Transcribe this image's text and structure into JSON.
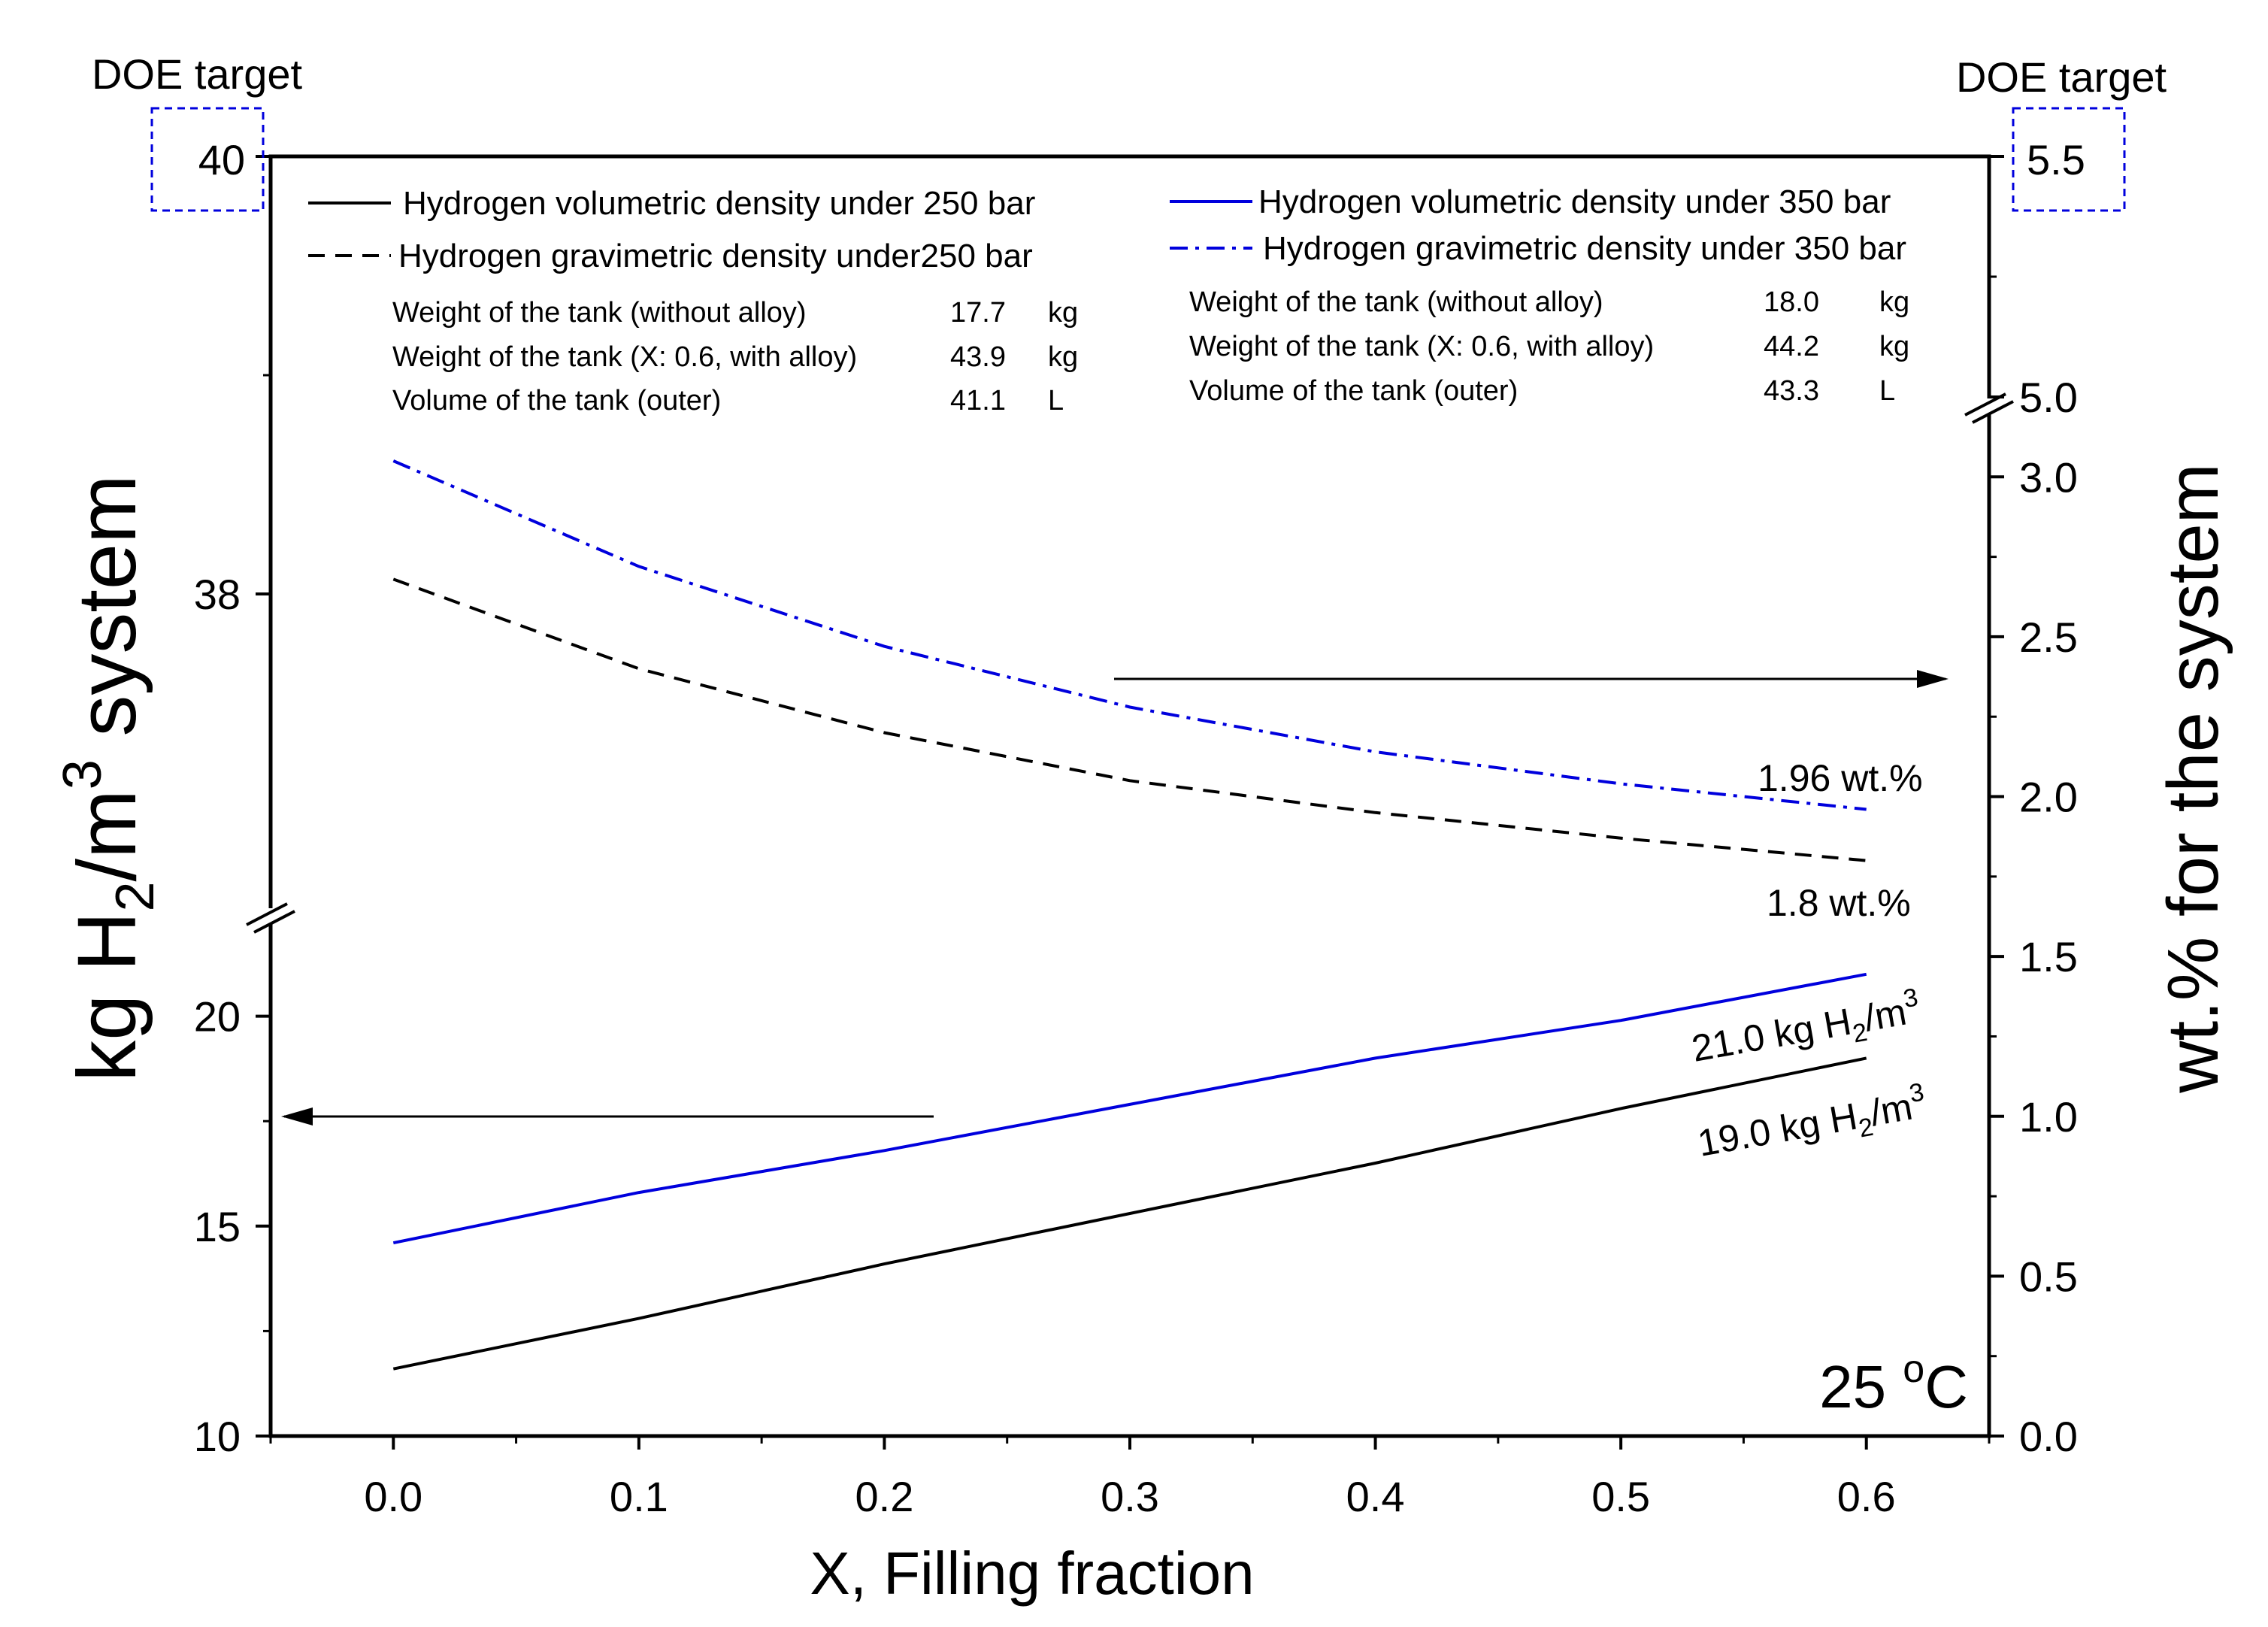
{
  "chart_data": {
    "type": "line",
    "title": "",
    "xlabel": "X, Filling fraction",
    "ylabel_left": {
      "pre": "kg H",
      "sub": "2",
      "mid": "/m",
      "sup": "3",
      "post": " system"
    },
    "ylabel_right": "wt.% for the system",
    "temperature": {
      "value": "25 ",
      "sup": "o",
      "unit": "C"
    },
    "xlim": [
      -0.05,
      0.65
    ],
    "x_ticks": [
      "0.0",
      "0.1",
      "0.2",
      "0.3",
      "0.4",
      "0.5",
      "0.6"
    ],
    "left_axis": {
      "lower_range": [
        10,
        22.5
      ],
      "upper_range": [
        36.55,
        40
      ],
      "lower_ticks": [
        "10",
        "15",
        "20"
      ],
      "upper_ticks": [
        "38",
        "40"
      ],
      "doe_target": {
        "label": "DOE target",
        "value": "40"
      }
    },
    "right_axis": {
      "lower_range": [
        0,
        3.25
      ],
      "upper_range": [
        5.0,
        5.5
      ],
      "lower_ticks": [
        "0.0",
        "0.5",
        "1.0",
        "1.5",
        "2.0",
        "2.5",
        "3.0"
      ],
      "upper_ticks": [
        "5.0",
        "5.5"
      ],
      "doe_target": {
        "label": "DOE target",
        "value": "5.5"
      }
    },
    "x": [
      0.0,
      0.1,
      0.2,
      0.3,
      0.4,
      0.5,
      0.6
    ],
    "series": [
      {
        "name": "Hydrogen volumetric density under 250 bar",
        "axis": "left",
        "color": "#000000",
        "dash": "solid",
        "values": [
          11.6,
          12.8,
          14.1,
          15.3,
          16.5,
          17.8,
          19.0
        ]
      },
      {
        "name": "Hydrogen gravimetric density under250 bar",
        "axis": "right",
        "color": "#000000",
        "dash": "dash",
        "values": [
          2.68,
          2.4,
          2.2,
          2.05,
          1.95,
          1.87,
          1.8
        ]
      },
      {
        "name": "Hydrogen volumetric density under 350 bar",
        "axis": "left",
        "color": "#0000dd",
        "dash": "solid",
        "values": [
          14.6,
          15.8,
          16.8,
          17.9,
          19.0,
          19.9,
          21.0
        ]
      },
      {
        "name": "Hydrogen gravimetric density under 350 bar",
        "axis": "right",
        "color": "#0000dd",
        "dash": "dashdot",
        "values": [
          3.05,
          2.72,
          2.47,
          2.28,
          2.14,
          2.04,
          1.96
        ]
      }
    ],
    "annotations": {
      "grav_350_end": "1.96 wt.%",
      "grav_250_end": "1.8 wt.%",
      "vol_350_end": {
        "pre": "21.0 kg H",
        "sub": "2",
        "mid": "/m",
        "sup": "3"
      },
      "vol_250_end": {
        "pre": "19.0 kg H",
        "sub": "2",
        "mid": "/m",
        "sup": "3"
      }
    },
    "tables": [
      {
        "rows": [
          {
            "label": "Weight of the tank (without alloy)",
            "value": "17.7",
            "unit": "kg"
          },
          {
            "label": "Weight of the tank (X: 0.6, with alloy)",
            "value": "43.9",
            "unit": "kg"
          },
          {
            "label": "Volume of the tank (outer)",
            "value": "41.1",
            "unit": "L"
          }
        ]
      },
      {
        "rows": [
          {
            "label": "Weight of the tank (without alloy)",
            "value": "18.0",
            "unit": "kg"
          },
          {
            "label": "Weight of the tank (X: 0.6, with alloy)",
            "value": "44.2",
            "unit": "kg"
          },
          {
            "label": "Volume of the tank (outer)",
            "value": "43.3",
            "unit": "L"
          }
        ]
      }
    ]
  }
}
